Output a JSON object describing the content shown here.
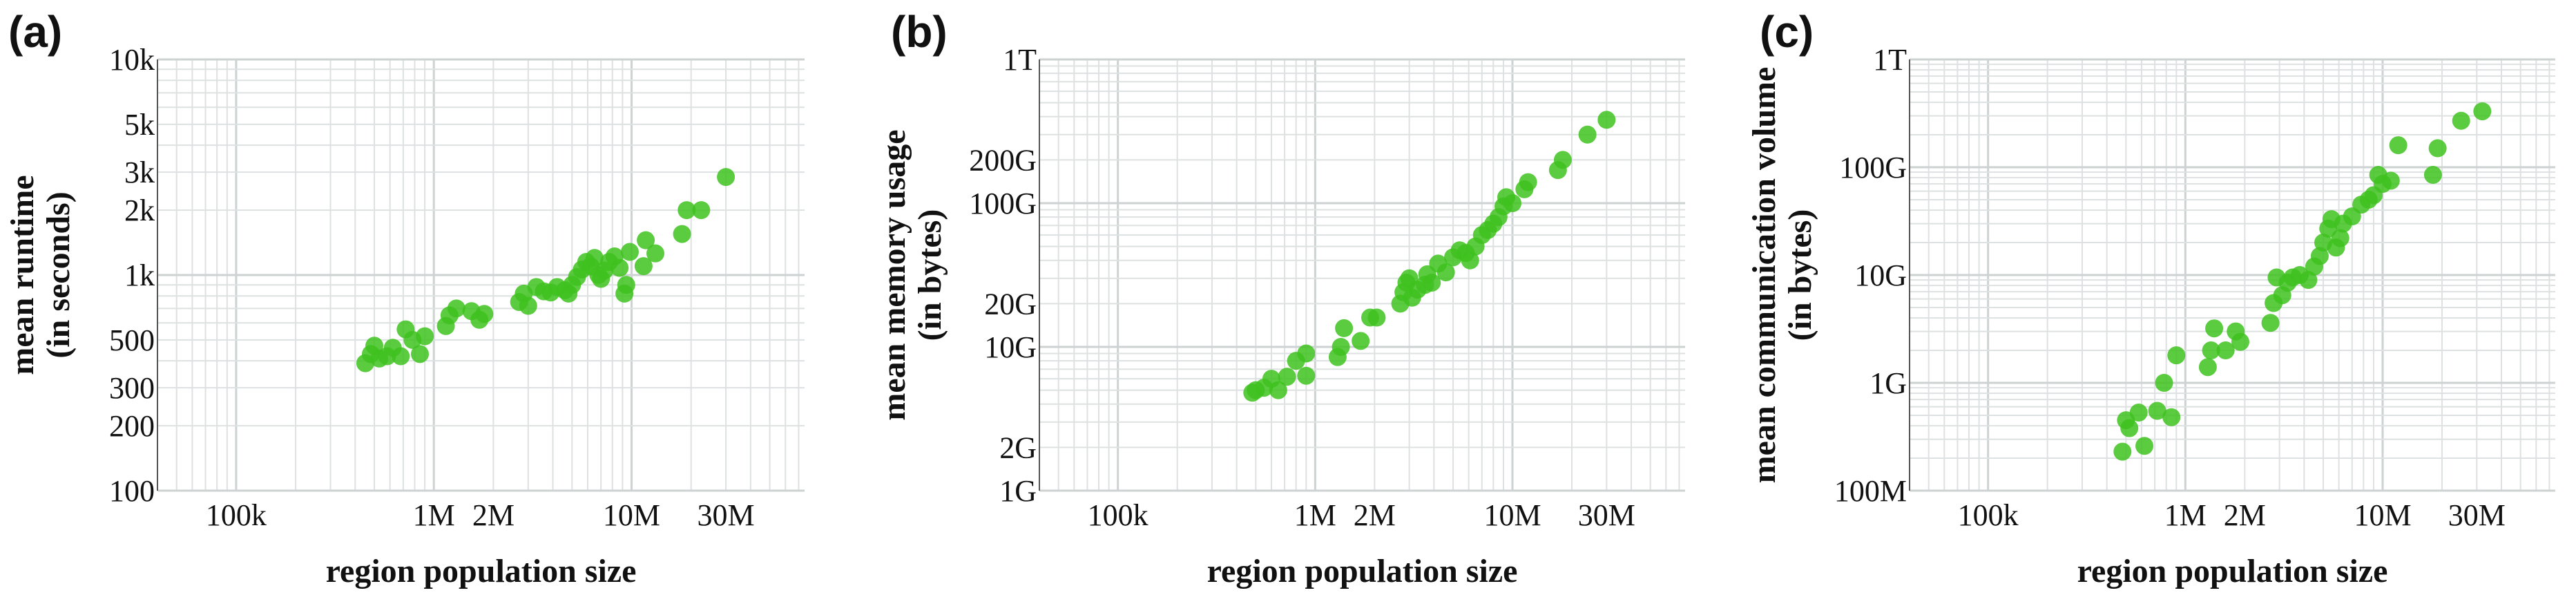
{
  "chart_data": [
    {
      "type": "scatter",
      "panel_label": "(a)",
      "xlabel": "region population size",
      "ylabel_line1": "mean runtime",
      "ylabel_line2": "(in seconds)",
      "xscale": "log",
      "yscale": "log",
      "xlim": [
        40000,
        75000000
      ],
      "ylim": [
        100,
        10000
      ],
      "grid": true,
      "x_ticks": [
        {
          "value": 100000,
          "label": "100k"
        },
        {
          "value": 1000000,
          "label": "1M"
        },
        {
          "value": 2000000,
          "label": "2M"
        },
        {
          "value": 10000000,
          "label": "10M"
        },
        {
          "value": 30000000,
          "label": "30M"
        }
      ],
      "y_ticks": [
        {
          "value": 100,
          "label": "100"
        },
        {
          "value": 200,
          "label": "200"
        },
        {
          "value": 300,
          "label": "300"
        },
        {
          "value": 500,
          "label": "500"
        },
        {
          "value": 1000,
          "label": "1k"
        },
        {
          "value": 2000,
          "label": "2k"
        },
        {
          "value": 3000,
          "label": "3k"
        },
        {
          "value": 5000,
          "label": "5k"
        },
        {
          "value": 10000,
          "label": "10k"
        }
      ],
      "color": "#3ec21f",
      "points": [
        [
          450000,
          390
        ],
        [
          480000,
          430
        ],
        [
          500000,
          470
        ],
        [
          530000,
          410
        ],
        [
          580000,
          420
        ],
        [
          620000,
          460
        ],
        [
          680000,
          420
        ],
        [
          720000,
          560
        ],
        [
          780000,
          500
        ],
        [
          850000,
          430
        ],
        [
          900000,
          520
        ],
        [
          1150000,
          580
        ],
        [
          1200000,
          650
        ],
        [
          1300000,
          700
        ],
        [
          1550000,
          680
        ],
        [
          1700000,
          620
        ],
        [
          1800000,
          660
        ],
        [
          2700000,
          750
        ],
        [
          2850000,
          820
        ],
        [
          3000000,
          720
        ],
        [
          3300000,
          880
        ],
        [
          3600000,
          840
        ],
        [
          3900000,
          830
        ],
        [
          4200000,
          880
        ],
        [
          4600000,
          850
        ],
        [
          4800000,
          820
        ],
        [
          5000000,
          900
        ],
        [
          5300000,
          980
        ],
        [
          5600000,
          1060
        ],
        [
          5900000,
          1150
        ],
        [
          6200000,
          1100
        ],
        [
          6500000,
          1200
        ],
        [
          6800000,
          1000
        ],
        [
          7000000,
          960
        ],
        [
          7300000,
          1050
        ],
        [
          7700000,
          1150
        ],
        [
          8200000,
          1220
        ],
        [
          8700000,
          1080
        ],
        [
          9200000,
          820
        ],
        [
          9400000,
          900
        ],
        [
          9800000,
          1280
        ],
        [
          11500000,
          1100
        ],
        [
          11800000,
          1450
        ],
        [
          13200000,
          1260
        ],
        [
          18000000,
          1550
        ],
        [
          19000000,
          2000
        ],
        [
          22500000,
          2000
        ],
        [
          30000000,
          2850
        ]
      ]
    },
    {
      "type": "scatter",
      "panel_label": "(b)",
      "xlabel": "region population size",
      "ylabel_line1": "mean memory usage",
      "ylabel_line2": "(in bytes)",
      "xscale": "log",
      "yscale": "log",
      "xlim": [
        40000,
        75000000
      ],
      "ylim": [
        1000000000,
        1000000000000
      ],
      "grid": true,
      "x_ticks": [
        {
          "value": 100000,
          "label": "100k"
        },
        {
          "value": 1000000,
          "label": "1M"
        },
        {
          "value": 2000000,
          "label": "2M"
        },
        {
          "value": 10000000,
          "label": "10M"
        },
        {
          "value": 30000000,
          "label": "30M"
        }
      ],
      "y_ticks": [
        {
          "value": 1000000000,
          "label": "1G"
        },
        {
          "value": 2000000000,
          "label": "2G"
        },
        {
          "value": 10000000000,
          "label": "10G"
        },
        {
          "value": 20000000000,
          "label": "20G"
        },
        {
          "value": 100000000000,
          "label": "100G"
        },
        {
          "value": 200000000000,
          "label": "200G"
        },
        {
          "value": 1000000000000,
          "label": "1T"
        }
      ],
      "color": "#3ec21f",
      "points": [
        [
          480000,
          4800000000.0
        ],
        [
          500000,
          5000000000.0
        ],
        [
          550000,
          5200000000.0
        ],
        [
          600000,
          6000000000.0
        ],
        [
          650000,
          5000000000.0
        ],
        [
          720000,
          6200000000.0
        ],
        [
          800000,
          8000000000.0
        ],
        [
          900000,
          9000000000.0
        ],
        [
          900000,
          6300000000.0
        ],
        [
          1300000,
          8500000000.0
        ],
        [
          1350000,
          10000000000.0
        ],
        [
          1400000,
          13500000000.0
        ],
        [
          1700000,
          11000000000.0
        ],
        [
          1900000,
          16000000000.0
        ],
        [
          2050000,
          16000000000.0
        ],
        [
          2700000,
          20000000000.0
        ],
        [
          2800000,
          24000000000.0
        ],
        [
          2900000,
          28000000000.0
        ],
        [
          3000000,
          30000000000.0
        ],
        [
          3100000,
          22000000000.0
        ],
        [
          3300000,
          25000000000.0
        ],
        [
          3600000,
          27000000000.0
        ],
        [
          3700000,
          32000000000.0
        ],
        [
          3900000,
          28000000000.0
        ],
        [
          4200000,
          38000000000.0
        ],
        [
          4600000,
          33000000000.0
        ],
        [
          5000000,
          42000000000.0
        ],
        [
          5400000,
          47000000000.0
        ],
        [
          5800000,
          45000000000.0
        ],
        [
          6100000,
          40000000000.0
        ],
        [
          6500000,
          50000000000.0
        ],
        [
          7000000,
          60000000000.0
        ],
        [
          7500000,
          65000000000.0
        ],
        [
          8000000,
          72000000000.0
        ],
        [
          8500000,
          80000000000.0
        ],
        [
          9000000,
          95000000000.0
        ],
        [
          9300000,
          110000000000.0
        ],
        [
          10000000,
          100000000000.0
        ],
        [
          11500000,
          125000000000.0
        ],
        [
          12000000,
          140000000000.0
        ],
        [
          17000000,
          170000000000.0
        ],
        [
          18000000,
          200000000000.0
        ],
        [
          24000000,
          300000000000.0
        ],
        [
          30000000,
          380000000000.0
        ]
      ]
    },
    {
      "type": "scatter",
      "panel_label": "(c)",
      "xlabel": "region population size",
      "ylabel_line1": "mean communication volume",
      "ylabel_line2": "(in bytes)",
      "xscale": "log",
      "yscale": "log",
      "xlim": [
        40000,
        75000000
      ],
      "ylim": [
        100000000,
        1000000000000
      ],
      "grid": true,
      "x_ticks": [
        {
          "value": 100000,
          "label": "100k"
        },
        {
          "value": 1000000,
          "label": "1M"
        },
        {
          "value": 2000000,
          "label": "2M"
        },
        {
          "value": 10000000,
          "label": "10M"
        },
        {
          "value": 30000000,
          "label": "30M"
        }
      ],
      "y_ticks": [
        {
          "value": 100000000,
          "label": "100M"
        },
        {
          "value": 1000000000,
          "label": "1G"
        },
        {
          "value": 10000000000,
          "label": "10G"
        },
        {
          "value": 100000000000,
          "label": "100G"
        },
        {
          "value": 1000000000000,
          "label": "1T"
        }
      ],
      "color": "#3ec21f",
      "points": [
        [
          480000,
          230000000.0
        ],
        [
          500000,
          450000000.0
        ],
        [
          520000,
          380000000.0
        ],
        [
          580000,
          530000000.0
        ],
        [
          620000,
          260000000.0
        ],
        [
          720000,
          550000000.0
        ],
        [
          780000,
          1000000000.0
        ],
        [
          850000,
          480000000.0
        ],
        [
          900000,
          1800000000.0
        ],
        [
          1300000,
          1400000000.0
        ],
        [
          1350000,
          2000000000.0
        ],
        [
          1400000,
          3200000000.0
        ],
        [
          1600000,
          2000000000.0
        ],
        [
          1800000,
          3000000000.0
        ],
        [
          1900000,
          2400000000.0
        ],
        [
          2700000,
          3600000000.0
        ],
        [
          2800000,
          5500000000.0
        ],
        [
          2900000,
          9500000000.0
        ],
        [
          3100000,
          6500000000.0
        ],
        [
          3300000,
          8500000000.0
        ],
        [
          3500000,
          9500000000.0
        ],
        [
          3800000,
          10000000000.0
        ],
        [
          4200000,
          9000000000.0
        ],
        [
          4500000,
          12000000000.0
        ],
        [
          4800000,
          15000000000.0
        ],
        [
          5000000,
          20000000000.0
        ],
        [
          5300000,
          27000000000.0
        ],
        [
          5500000,
          33000000000.0
        ],
        [
          5800000,
          18000000000.0
        ],
        [
          6100000,
          22000000000.0
        ],
        [
          6300000,
          30000000000.0
        ],
        [
          7000000,
          35000000000.0
        ],
        [
          7800000,
          45000000000.0
        ],
        [
          8500000,
          50000000000.0
        ],
        [
          9000000,
          55000000000.0
        ],
        [
          9500000,
          85000000000.0
        ],
        [
          10000000,
          70000000000.0
        ],
        [
          11000000,
          75000000000.0
        ],
        [
          12000000,
          160000000000.0
        ],
        [
          18000000,
          85000000000.0
        ],
        [
          19000000,
          150000000000.0
        ],
        [
          25000000,
          270000000000.0
        ],
        [
          32000000,
          330000000000.0
        ]
      ]
    }
  ]
}
